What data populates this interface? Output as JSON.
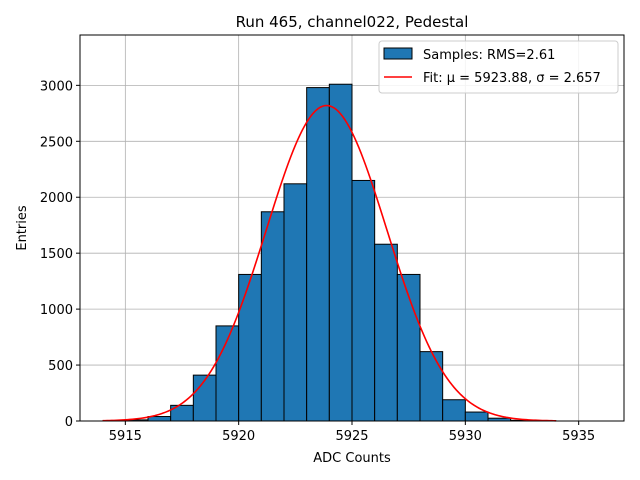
{
  "chart_data": {
    "type": "bar",
    "title": "Run 465, channel022, Pedestal",
    "xlabel": "ADC Counts",
    "ylabel": "Entries",
    "xlim": [
      5913,
      5937
    ],
    "ylim": [
      0,
      3450
    ],
    "xticks": [
      5915,
      5920,
      5925,
      5930,
      5935
    ],
    "yticks": [
      0,
      500,
      1000,
      1500,
      2000,
      2500,
      3000
    ],
    "grid": true,
    "legend_position": "top-right",
    "histogram": {
      "name": "Samples: RMS=2.61",
      "bin_edges": [
        5914,
        5915,
        5916,
        5917,
        5918,
        5919,
        5920,
        5921,
        5922,
        5923,
        5924,
        5925,
        5926,
        5927,
        5928,
        5929,
        5930,
        5931,
        5932,
        5933,
        5934
      ],
      "counts": [
        1,
        10,
        40,
        140,
        410,
        850,
        1310,
        1870,
        2120,
        2980,
        3010,
        2150,
        1580,
        1310,
        620,
        190,
        80,
        25,
        6,
        2
      ],
      "color": "#1f77b4",
      "edge_color": "#000000"
    },
    "fit": {
      "name": "Fit: μ = 5923.88, σ = 2.657",
      "mu": 5923.88,
      "sigma": 2.657,
      "amplitude": 2820,
      "x_range": [
        5914,
        5934
      ],
      "color": "#ff0000"
    }
  }
}
